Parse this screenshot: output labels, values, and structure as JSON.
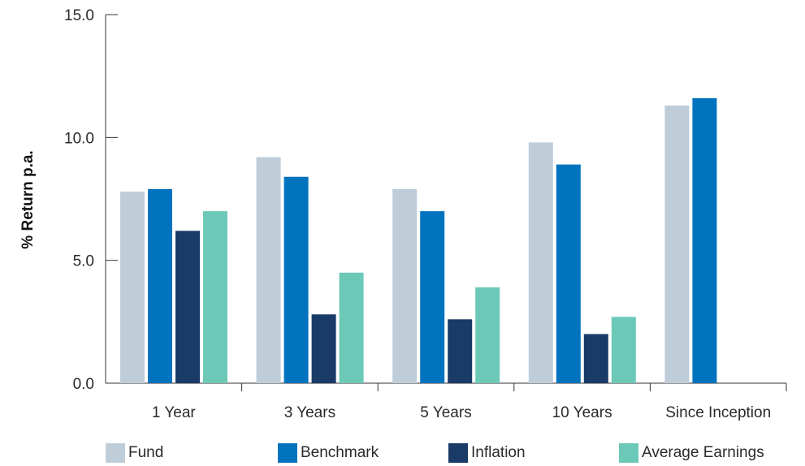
{
  "chart_data": {
    "type": "bar",
    "ylabel": "% Return p.a.",
    "xlabel": "",
    "ylim": [
      0,
      15
    ],
    "yticks": [
      "0.0",
      "5.0",
      "10.0",
      "15.0"
    ],
    "categories": [
      "1 Year",
      "3 Years",
      "5 Years",
      "10 Years",
      "Since Inception"
    ],
    "series": [
      {
        "name": "Fund",
        "color": "#BFCDD9",
        "values": [
          7.8,
          9.2,
          7.9,
          9.8,
          11.3
        ]
      },
      {
        "name": "Benchmark",
        "color": "#0073BF",
        "values": [
          7.9,
          8.4,
          7.0,
          8.9,
          11.6
        ]
      },
      {
        "name": "Inflation",
        "color": "#1A3A68",
        "values": [
          6.2,
          2.8,
          2.6,
          2.0,
          null
        ]
      },
      {
        "name": "Average Earnings",
        "color": "#6CC9B8",
        "values": [
          7.0,
          4.5,
          3.9,
          2.7,
          null
        ]
      }
    ],
    "grid": false,
    "legend_position": "bottom"
  }
}
